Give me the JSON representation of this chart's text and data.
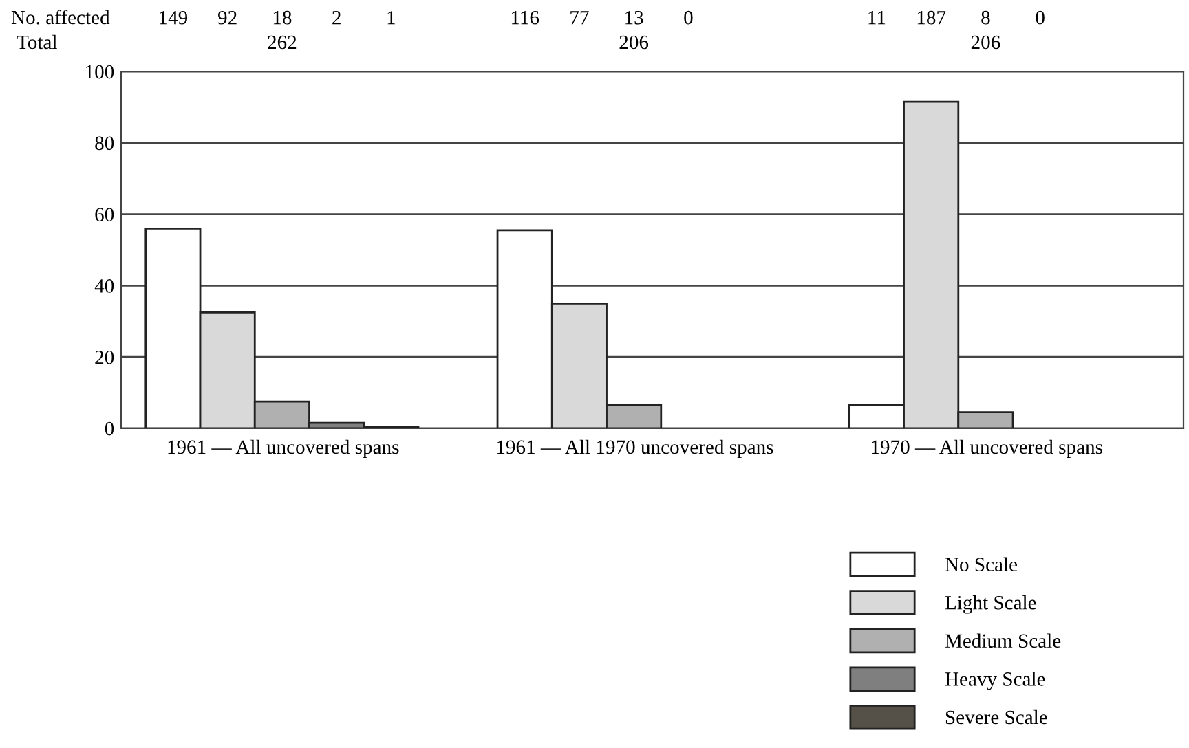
{
  "chart_data": {
    "type": "bar",
    "categories": [
      "1961 — All uncovered spans",
      "1961 — All 1970 uncovered spans",
      "1970 — All uncovered spans"
    ],
    "series": [
      {
        "name": "No Scale",
        "color": "#ffffff",
        "values": [
          56,
          55.5,
          6.5
        ]
      },
      {
        "name": "Light Scale",
        "color": "#d9d9d9",
        "values": [
          32.5,
          35,
          91.5
        ]
      },
      {
        "name": "Medium Scale",
        "color": "#b0b0b0",
        "values": [
          7.5,
          6.5,
          4.5
        ]
      },
      {
        "name": "Heavy Scale",
        "color": "#7f7f7f",
        "values": [
          1.5,
          0,
          0
        ]
      },
      {
        "name": "Severe Scale",
        "color": "#555048",
        "values": [
          0.5,
          null,
          null
        ]
      }
    ],
    "annotations": [
      "No. affected",
      "149",
      "92",
      "18",
      "2",
      "1",
      "116",
      "77",
      "13",
      "0",
      "11",
      "187",
      "8",
      "0",
      "Total",
      "262",
      "206",
      "206"
    ],
    "ylim": [
      0,
      100
    ],
    "yticks": [
      0,
      20,
      40,
      60,
      80,
      100
    ],
    "grid": "y",
    "legend": "bottom right"
  }
}
